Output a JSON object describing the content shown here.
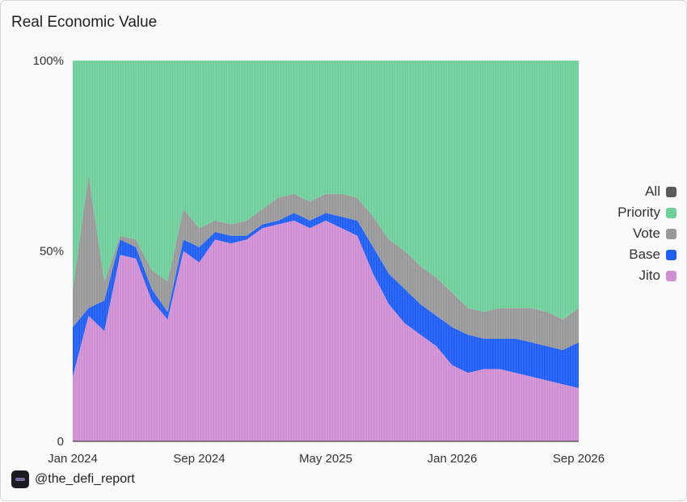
{
  "colors": {
    "all": "#5b5b5b",
    "priority": "#6fcf9b",
    "vote": "#999999",
    "base": "#1f5ff5",
    "jito": "#d08fd2"
  },
  "credit": {
    "text": "@the_defi_report",
    "icon": "report-logo-icon"
  },
  "chart_data": {
    "type": "area",
    "title": "Real Economic Value",
    "xlabel": "",
    "ylabel": "",
    "stacking": "percent",
    "ylim": [
      0,
      100
    ],
    "y_ticks": [
      {
        "value": 0,
        "label": "0"
      },
      {
        "value": 50,
        "label": "50%"
      },
      {
        "value": 100,
        "label": "100%"
      }
    ],
    "x_ticks": [
      {
        "value": "2024-01",
        "label": "Jan 2024"
      },
      {
        "value": "2024-09",
        "label": "Sep 2024"
      },
      {
        "value": "2025-05",
        "label": "May 2025"
      },
      {
        "value": "2026-01",
        "label": "Jan 2026"
      },
      {
        "value": "2026-09",
        "label": "Sep 2026"
      }
    ],
    "legend_position": "right",
    "legend": [
      "All",
      "Priority",
      "Vote",
      "Base",
      "Jito"
    ],
    "x": [
      "2024-01",
      "2024-02",
      "2024-03",
      "2024-04",
      "2024-05",
      "2024-06",
      "2024-07",
      "2024-08",
      "2024-09",
      "2024-10",
      "2024-11",
      "2024-12",
      "2025-01",
      "2025-02",
      "2025-03",
      "2025-04",
      "2025-05",
      "2025-06",
      "2025-07",
      "2025-08",
      "2025-09",
      "2025-10",
      "2025-11",
      "2025-12",
      "2026-01",
      "2026-02",
      "2026-03",
      "2026-04",
      "2026-05",
      "2026-06",
      "2026-07",
      "2026-08",
      "2026-09"
    ],
    "series": [
      {
        "name": "Jito",
        "values": [
          17,
          33,
          29,
          49,
          48,
          37,
          32,
          50,
          47,
          53,
          52,
          53,
          56,
          57,
          58,
          56,
          58,
          56,
          54,
          44,
          36,
          31,
          28,
          25,
          20,
          18,
          19,
          19,
          18,
          17,
          16,
          15,
          14
        ]
      },
      {
        "name": "Base",
        "values": [
          13,
          2,
          8,
          4,
          3,
          3,
          2,
          3,
          4,
          2,
          2,
          1,
          1,
          1,
          2,
          2,
          2,
          3,
          4,
          7,
          8,
          9,
          8,
          8,
          10,
          10,
          8,
          8,
          9,
          9,
          9,
          9,
          12
        ]
      },
      {
        "name": "Vote",
        "values": [
          10,
          35,
          5,
          1,
          2,
          5,
          8,
          8,
          5,
          3,
          3,
          4,
          4,
          6,
          5,
          5,
          5,
          6,
          6,
          8,
          9,
          10,
          10,
          10,
          9,
          7,
          7,
          8,
          8,
          9,
          9,
          8,
          9
        ]
      },
      {
        "name": "Priority",
        "values": [
          60,
          30,
          58,
          46,
          47,
          55,
          58,
          39,
          44,
          42,
          43,
          42,
          39,
          36,
          35,
          37,
          35,
          35,
          36,
          41,
          47,
          50,
          54,
          57,
          61,
          65,
          66,
          65,
          65,
          65,
          66,
          68,
          65
        ]
      }
    ]
  }
}
